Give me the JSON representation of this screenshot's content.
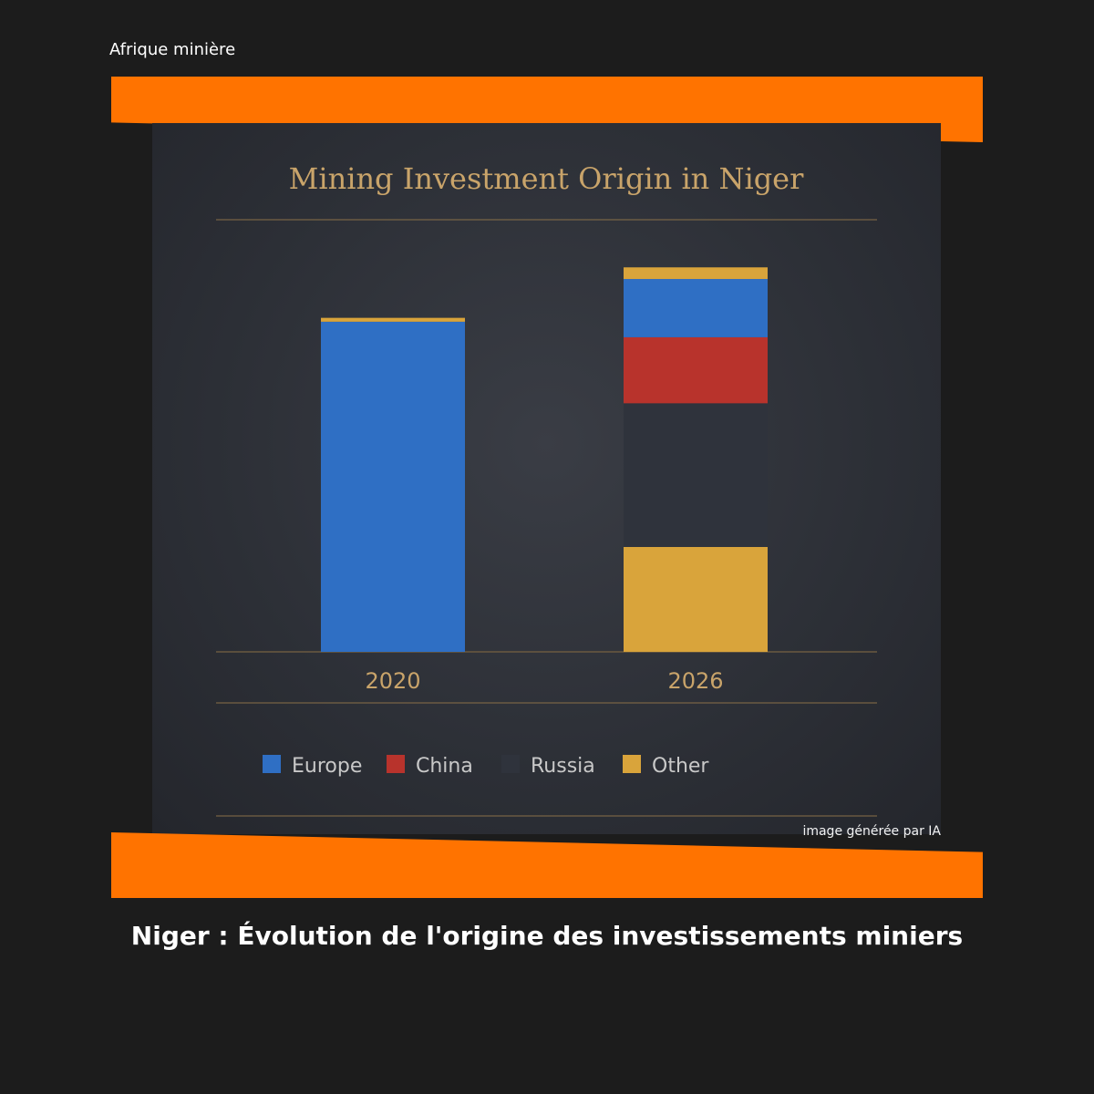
{
  "brand": "Afrique minière",
  "ai_note": "image générée par IA",
  "headline": "Niger : Évolution de l'origine des investissements miniers",
  "colors": {
    "accent": "#ff7300",
    "background": "#1c1c1c",
    "panel": "#2c2f36",
    "gold_text": "#c9a46a"
  },
  "chart_data": {
    "type": "bar",
    "stacked": true,
    "title": "Mining Investment Origin in Niger",
    "xlabel": "",
    "ylabel": "",
    "grid": false,
    "legend_position": "bottom",
    "categories": [
      "2020",
      "2026"
    ],
    "ylim": [
      0,
      100
    ],
    "series": [
      {
        "name": "Other",
        "color": "#d9a43b",
        "values": [
          0,
          27
        ]
      },
      {
        "name": "Russia",
        "color": "#2f333c",
        "values": [
          0,
          37
        ]
      },
      {
        "name": "China",
        "color": "#b8332c",
        "values": [
          0,
          17
        ]
      },
      {
        "name": "Europe",
        "color": "#2f6fc4",
        "values": [
          85,
          15
        ]
      },
      {
        "name": "Other",
        "color": "#d9a43b",
        "values": [
          1,
          3
        ],
        "legend": false
      }
    ],
    "legend": [
      {
        "name": "Europe",
        "color": "#2f6fc4"
      },
      {
        "name": "China",
        "color": "#b8332c"
      },
      {
        "name": "Russia",
        "color": "#2f333c"
      },
      {
        "name": "Other",
        "color": "#d9a43b"
      }
    ]
  }
}
